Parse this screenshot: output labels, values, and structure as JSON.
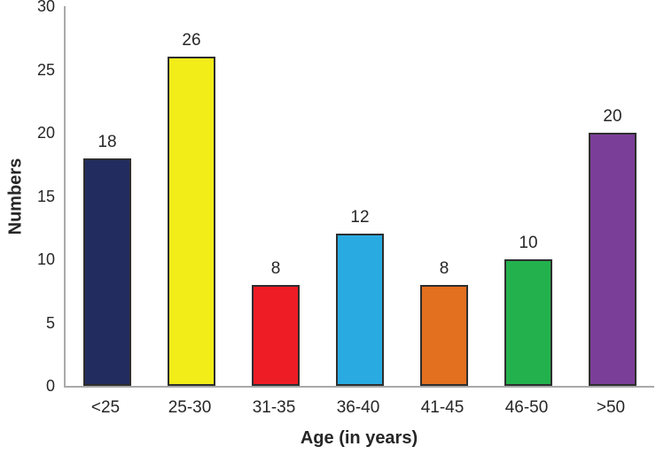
{
  "chart_data": {
    "type": "bar",
    "title": "",
    "xlabel": "Age (in years)",
    "ylabel": "Numbers",
    "categories": [
      "<25",
      "25-30",
      "31-35",
      "36-40",
      "41-45",
      "46-50",
      ">50"
    ],
    "values": [
      18,
      26,
      8,
      12,
      8,
      10,
      20
    ],
    "value_labels": [
      "18",
      "26",
      "8",
      "12",
      "8",
      "10",
      "20"
    ],
    "bar_colors": [
      "#232c5f",
      "#f2ec19",
      "#ee1c25",
      "#29abe2",
      "#e2701f",
      "#23b14d",
      "#7b3e98"
    ],
    "ylim": [
      0,
      30
    ],
    "yticks": [
      0,
      5,
      10,
      15,
      20,
      25,
      30
    ],
    "grid": false,
    "legend": false,
    "bar_outline_color": "#2e2e2e",
    "axis_line_color": "#a9a9a9",
    "text_color": "#262626",
    "background_color": "#ffffff"
  }
}
